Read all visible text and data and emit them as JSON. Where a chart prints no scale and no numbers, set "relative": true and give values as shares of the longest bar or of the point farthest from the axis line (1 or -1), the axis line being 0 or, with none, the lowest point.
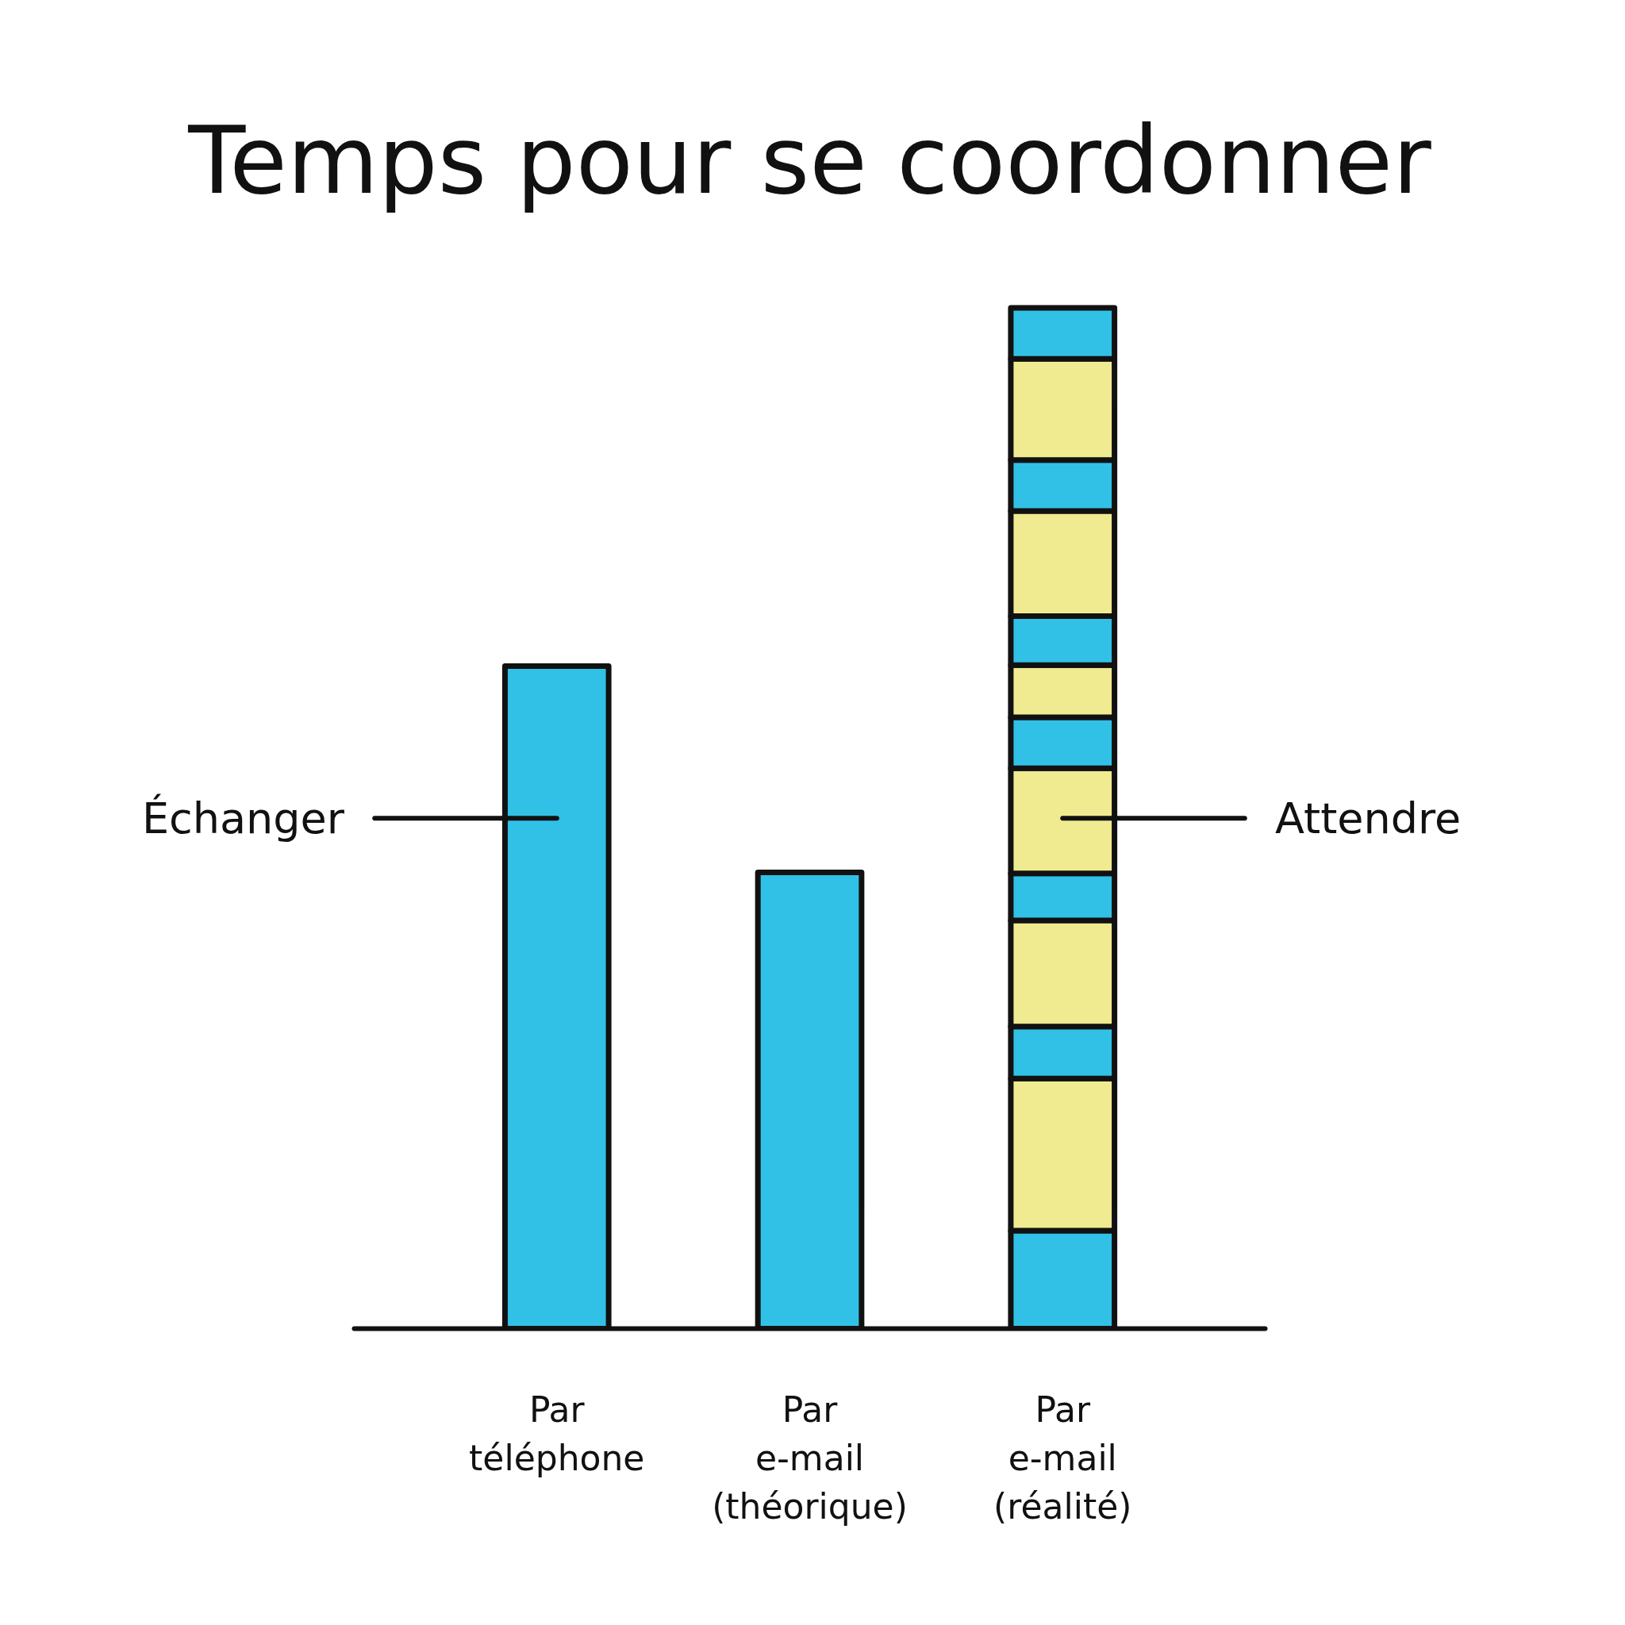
{
  "chart_data": {
    "type": "bar",
    "title": "Temps pour se coordonner",
    "categories": [
      "Par\ntéléphone",
      "Par\ne-mail\n(théorique)",
      "Par\ne-mail\n(réalité)"
    ],
    "relative": true,
    "stacked": true,
    "series": [
      {
        "name": "Échanger",
        "color": "#31c1e6",
        "values": [
          0.649,
          0.447,
          0.096
        ]
      },
      {
        "color": "#f0eb91",
        "values": [
          null,
          null,
          0.149
        ]
      },
      {
        "color": "#31c1e6",
        "values": [
          null,
          null,
          0.051
        ]
      },
      {
        "color": "#f0eb91",
        "values": [
          null,
          null,
          0.104
        ]
      },
      {
        "color": "#31c1e6",
        "values": [
          null,
          null,
          0.046
        ]
      },
      {
        "name": "Attendre",
        "color": "#f0eb91",
        "values": [
          null,
          null,
          0.103
        ]
      },
      {
        "color": "#31c1e6",
        "values": [
          null,
          null,
          0.05
        ]
      },
      {
        "color": "#f0eb91",
        "values": [
          null,
          null,
          0.051
        ]
      },
      {
        "color": "#31c1e6",
        "values": [
          null,
          null,
          0.048
        ]
      },
      {
        "color": "#f0eb91",
        "values": [
          null,
          null,
          0.103
        ]
      },
      {
        "color": "#31c1e6",
        "values": [
          null,
          null,
          0.05
        ]
      },
      {
        "color": "#f0eb91",
        "values": [
          null,
          null,
          0.099
        ]
      },
      {
        "color": "#31c1e6",
        "values": [
          null,
          null,
          0.05
        ]
      }
    ]
  }
}
